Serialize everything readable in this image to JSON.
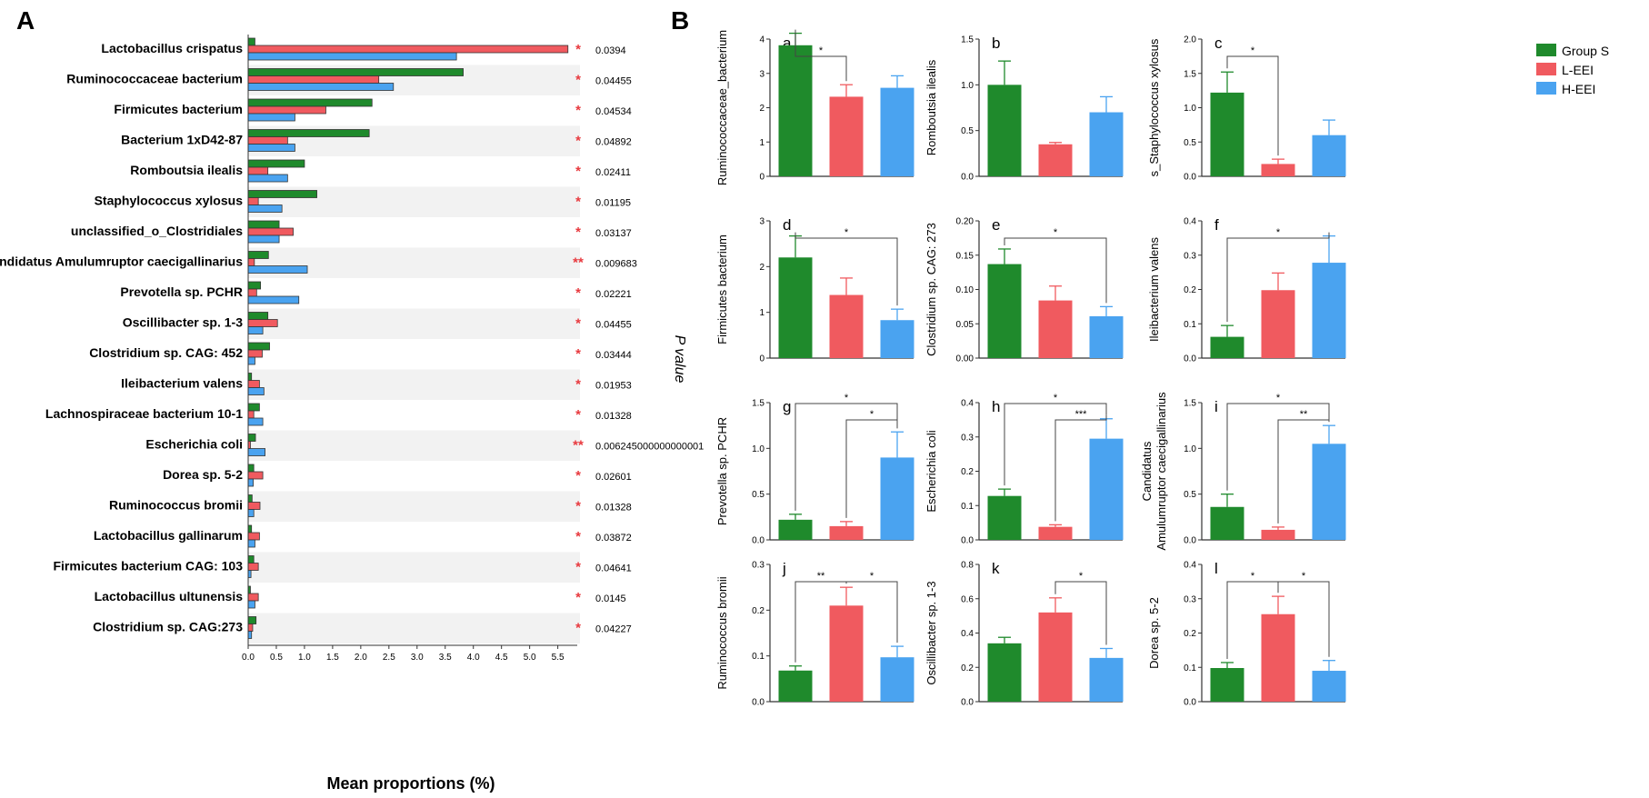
{
  "colors": {
    "groupS": "#1f8a2c",
    "lEEI": "#f05a5f",
    "hEEI": "#4aa3f0",
    "stripe": "#f2f2f2",
    "sig": "#e8393e"
  },
  "panelA": {
    "label": "A",
    "xlabel": "Mean proportions (%)",
    "pvalue_label": "P value",
    "xticks": [
      "0.0",
      "0.5",
      "1.0",
      "1.5",
      "2.0",
      "2.5",
      "3.0",
      "3.5",
      "4.0",
      "4.5",
      "5.0",
      "5.5"
    ]
  },
  "panelB": {
    "label": "B",
    "legend": [
      {
        "name": "Group S",
        "color": "#1f8a2c"
      },
      {
        "name": "L-EEI",
        "color": "#f05a5f"
      },
      {
        "name": "H-EEI",
        "color": "#4aa3f0"
      }
    ]
  },
  "chart_data": [
    {
      "type": "bar",
      "orientation": "horizontal",
      "title": "",
      "xlabel": "Mean proportions (%)",
      "ylabel": "",
      "xlim": [
        0,
        5.7
      ],
      "series_names": [
        "Group S",
        "L-EEI",
        "H-EEI"
      ],
      "rows": [
        {
          "name": "Lactobacillus crispatus",
          "values": [
            0.12,
            5.68,
            3.7
          ],
          "sig": "*",
          "p": "0.0394"
        },
        {
          "name": "Ruminococcaceae bacterium",
          "values": [
            3.82,
            2.32,
            2.58
          ],
          "sig": "*",
          "p": "0.04455"
        },
        {
          "name": "Firmicutes bacterium",
          "values": [
            2.2,
            1.38,
            0.83
          ],
          "sig": "*",
          "p": "0.04534"
        },
        {
          "name": "Bacterium 1xD42-87",
          "values": [
            2.15,
            0.7,
            0.83
          ],
          "sig": "*",
          "p": "0.04892"
        },
        {
          "name": "Romboutsia ilealis",
          "values": [
            1.0,
            0.35,
            0.7
          ],
          "sig": "*",
          "p": "0.02411"
        },
        {
          "name": "Staphylococcus xylosus",
          "values": [
            1.22,
            0.18,
            0.6
          ],
          "sig": "*",
          "p": "0.01195"
        },
        {
          "name": "unclassified_o_Clostridiales",
          "values": [
            0.55,
            0.8,
            0.55
          ],
          "sig": "*",
          "p": "0.03137"
        },
        {
          "name": "Candidatus Amulumruptor caecigallinarius",
          "values": [
            0.36,
            0.11,
            1.05
          ],
          "sig": "**",
          "p": "0.009683"
        },
        {
          "name": "Prevotella sp. PCHR",
          "values": [
            0.22,
            0.15,
            0.9
          ],
          "sig": "*",
          "p": "0.02221"
        },
        {
          "name": "Oscillibacter sp. 1-3",
          "values": [
            0.35,
            0.52,
            0.26
          ],
          "sig": "*",
          "p": "0.04455"
        },
        {
          "name": "Clostridium sp. CAG: 452",
          "values": [
            0.38,
            0.25,
            0.12
          ],
          "sig": "*",
          "p": "0.03444"
        },
        {
          "name": "Ileibacterium valens",
          "values": [
            0.06,
            0.2,
            0.28
          ],
          "sig": "*",
          "p": "0.01953"
        },
        {
          "name": "Lachnospiraceae bacterium 10-1",
          "values": [
            0.2,
            0.1,
            0.26
          ],
          "sig": "*",
          "p": "0.01328"
        },
        {
          "name": "Escherichia coli",
          "values": [
            0.13,
            0.04,
            0.3
          ],
          "sig": "**",
          "p": "0.006245000000000001"
        },
        {
          "name": "Dorea sp. 5-2",
          "values": [
            0.1,
            0.26,
            0.09
          ],
          "sig": "*",
          "p": "0.02601"
        },
        {
          "name": "Ruminococcus bromii",
          "values": [
            0.07,
            0.21,
            0.1
          ],
          "sig": "*",
          "p": "0.01328"
        },
        {
          "name": "Lactobacillus gallinarum",
          "values": [
            0.06,
            0.2,
            0.12
          ],
          "sig": "*",
          "p": "0.03872"
        },
        {
          "name": "Firmicutes bacterium CAG: 103",
          "values": [
            0.1,
            0.18,
            0.05
          ],
          "sig": "*",
          "p": "0.04641"
        },
        {
          "name": "Lactobacillus ultunensis",
          "values": [
            0.04,
            0.18,
            0.12
          ],
          "sig": "*",
          "p": "0.0145"
        },
        {
          "name": "Clostridium sp. CAG:273",
          "values": [
            0.14,
            0.08,
            0.06
          ],
          "sig": "*",
          "p": "0.04227"
        }
      ]
    },
    {
      "type": "bar",
      "panel": "a",
      "ylabel": "Ruminococcaceae_bacterium",
      "ylim": [
        0,
        4
      ],
      "yticks": [
        "0",
        "1",
        "2",
        "3",
        "4"
      ],
      "categories": [
        "Group S",
        "L-EEI",
        "H-EEI"
      ],
      "values": [
        3.82,
        2.32,
        2.58
      ],
      "errors": [
        0.35,
        0.35,
        0.35
      ],
      "brackets": [
        {
          "from": 0,
          "to": 1,
          "level": 0,
          "label": "*"
        }
      ]
    },
    {
      "type": "bar",
      "panel": "b",
      "ylabel": "Romboutsia ilealis",
      "ylim": [
        0,
        1.5
      ],
      "yticks": [
        "0.0",
        "0.5",
        "1.0",
        "1.5"
      ],
      "categories": [
        "Group S",
        "L-EEI",
        "H-EEI"
      ],
      "values": [
        1.0,
        0.35,
        0.7
      ],
      "errors": [
        0.26,
        0.02,
        0.17
      ],
      "brackets": []
    },
    {
      "type": "bar",
      "panel": "c",
      "ylabel": "s_Staphylococcus xylosus",
      "ylim": [
        0,
        2.0
      ],
      "yticks": [
        "0.0",
        "0.5",
        "1.0",
        "1.5",
        "2.0"
      ],
      "categories": [
        "Group S",
        "L-EEI",
        "H-EEI"
      ],
      "values": [
        1.22,
        0.18,
        0.6
      ],
      "errors": [
        0.3,
        0.07,
        0.22
      ],
      "brackets": [
        {
          "from": 0,
          "to": 1,
          "level": 0,
          "label": "*"
        }
      ]
    },
    {
      "type": "bar",
      "panel": "d",
      "ylabel": "Firmicutes bacterium",
      "ylim": [
        0,
        3
      ],
      "yticks": [
        "0",
        "1",
        "2",
        "3"
      ],
      "categories": [
        "Group S",
        "L-EEI",
        "H-EEI"
      ],
      "values": [
        2.2,
        1.38,
        0.83
      ],
      "errors": [
        0.47,
        0.37,
        0.24
      ],
      "brackets": [
        {
          "from": 0,
          "to": 2,
          "level": 0,
          "label": "*"
        }
      ]
    },
    {
      "type": "bar",
      "panel": "e",
      "ylabel": "Clostridium sp. CAG: 273",
      "ylim": [
        0,
        0.2
      ],
      "yticks": [
        "0.00",
        "0.05",
        "0.10",
        "0.15",
        "0.20"
      ],
      "categories": [
        "Group S",
        "L-EEI",
        "H-EEI"
      ],
      "values": [
        0.137,
        0.084,
        0.061
      ],
      "errors": [
        0.022,
        0.021,
        0.014
      ],
      "brackets": [
        {
          "from": 0,
          "to": 2,
          "level": 0,
          "label": "*"
        }
      ]
    },
    {
      "type": "bar",
      "panel": "f",
      "ylabel": "Ileibacterium valens",
      "ylim": [
        0,
        0.4
      ],
      "yticks": [
        "0.0",
        "0.1",
        "0.2",
        "0.3",
        "0.4"
      ],
      "categories": [
        "Group S",
        "L-EEI",
        "H-EEI"
      ],
      "values": [
        0.062,
        0.198,
        0.278
      ],
      "errors": [
        0.033,
        0.05,
        0.078
      ],
      "brackets": [
        {
          "from": 0,
          "to": 2,
          "level": 0,
          "label": "*"
        }
      ]
    },
    {
      "type": "bar",
      "panel": "g",
      "ylabel": "Prevotella sp. PCHR",
      "ylim": [
        0,
        1.5
      ],
      "yticks": [
        "0.0",
        "0.5",
        "1.0",
        "1.5"
      ],
      "categories": [
        "Group S",
        "L-EEI",
        "H-EEI"
      ],
      "values": [
        0.22,
        0.15,
        0.9
      ],
      "errors": [
        0.06,
        0.05,
        0.28
      ],
      "brackets": [
        {
          "from": 0,
          "to": 2,
          "level": 1,
          "label": "*"
        },
        {
          "from": 1,
          "to": 2,
          "level": 0,
          "label": "*"
        }
      ]
    },
    {
      "type": "bar",
      "panel": "h",
      "ylabel": "Escherichia coli",
      "ylim": [
        0,
        0.4
      ],
      "yticks": [
        "0.0",
        "0.1",
        "0.2",
        "0.3",
        "0.4"
      ],
      "categories": [
        "Group S",
        "L-EEI",
        "H-EEI"
      ],
      "values": [
        0.128,
        0.038,
        0.295
      ],
      "errors": [
        0.02,
        0.006,
        0.058
      ],
      "brackets": [
        {
          "from": 0,
          "to": 2,
          "level": 1,
          "label": "*"
        },
        {
          "from": 1,
          "to": 2,
          "level": 0,
          "label": "***"
        }
      ]
    },
    {
      "type": "bar",
      "panel": "i",
      "ylabel": "Candidatus Amulumruptor caecigallinarius",
      "ylim": [
        0,
        1.5
      ],
      "yticks": [
        "0.0",
        "0.5",
        "1.0",
        "1.5"
      ],
      "categories": [
        "Group S",
        "L-EEI",
        "H-EEI"
      ],
      "values": [
        0.36,
        0.11,
        1.05
      ],
      "errors": [
        0.14,
        0.03,
        0.2
      ],
      "brackets": [
        {
          "from": 0,
          "to": 2,
          "level": 1,
          "label": "*"
        },
        {
          "from": 1,
          "to": 2,
          "level": 0,
          "label": "**"
        }
      ]
    },
    {
      "type": "bar",
      "panel": "j",
      "ylabel": "Ruminococcus bromii",
      "ylim": [
        0,
        0.3
      ],
      "yticks": [
        "0.0",
        "0.1",
        "0.2",
        "0.3"
      ],
      "categories": [
        "Group S",
        "L-EEI",
        "H-EEI"
      ],
      "values": [
        0.068,
        0.21,
        0.097
      ],
      "errors": [
        0.01,
        0.04,
        0.024
      ],
      "brackets": [
        {
          "from": 0,
          "to": 1,
          "level": 0,
          "label": "**"
        },
        {
          "from": 1,
          "to": 2,
          "level": 0,
          "label": "*"
        }
      ]
    },
    {
      "type": "bar",
      "panel": "k",
      "ylabel": "Oscillibacter sp. 1-3",
      "ylim": [
        0,
        0.8
      ],
      "yticks": [
        "0.0",
        "0.2",
        "0.4",
        "0.6",
        "0.8"
      ],
      "categories": [
        "Group S",
        "L-EEI",
        "H-EEI"
      ],
      "values": [
        0.34,
        0.52,
        0.255
      ],
      "errors": [
        0.035,
        0.085,
        0.055
      ],
      "brackets": [
        {
          "from": 1,
          "to": 2,
          "level": 0,
          "label": "*"
        }
      ]
    },
    {
      "type": "bar",
      "panel": "l",
      "ylabel": "Dorea sp. 5-2",
      "ylim": [
        0,
        0.4
      ],
      "yticks": [
        "0.0",
        "0.1",
        "0.2",
        "0.3",
        "0.4"
      ],
      "categories": [
        "Group S",
        "L-EEI",
        "H-EEI"
      ],
      "values": [
        0.098,
        0.255,
        0.09
      ],
      "errors": [
        0.016,
        0.052,
        0.03
      ],
      "brackets": [
        {
          "from": 0,
          "to": 1,
          "level": 0,
          "label": "*"
        },
        {
          "from": 1,
          "to": 2,
          "level": 0,
          "label": "*"
        }
      ]
    }
  ]
}
